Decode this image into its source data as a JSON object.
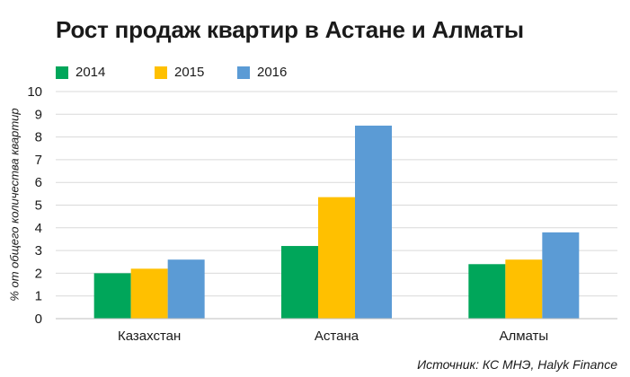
{
  "chart_data": {
    "type": "bar",
    "title": "Рост продаж квартир в Астане и Алматы",
    "categories": [
      "Казахстан",
      "Астана",
      "Алматы"
    ],
    "series": [
      {
        "name": "2014",
        "color": "#00a65a",
        "values": [
          2.0,
          3.2,
          2.4
        ]
      },
      {
        "name": "2015",
        "color": "#ffc000",
        "values": [
          2.2,
          5.35,
          2.6
        ]
      },
      {
        "name": "2016",
        "color": "#5b9bd5",
        "values": [
          2.6,
          8.5,
          3.8
        ]
      }
    ],
    "xlabel": "",
    "ylabel": "% от общего количества квартир",
    "ylim": [
      0,
      10
    ],
    "yticks": [
      0,
      1,
      2,
      3,
      4,
      5,
      6,
      7,
      8,
      9,
      10
    ],
    "grid": true,
    "legend_position": "top-left",
    "source": "Источник: КС МНЭ, Halyk Finance"
  }
}
